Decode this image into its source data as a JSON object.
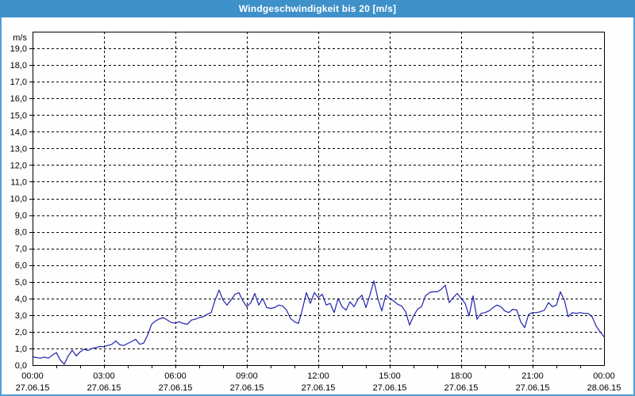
{
  "window": {
    "title": "Windgeschwindigkeit bis 20 [m/s]"
  },
  "colors": {
    "title_bar_bg": "#3E90C8",
    "title_text": "#FFFFFF",
    "frame_border": "#4F9FD4",
    "background": "#FDFEFD",
    "plot_border": "#000000",
    "grid": "#000000",
    "axis_text": "#000000",
    "line": "#2222AE"
  },
  "y_axis": {
    "unit": "m/s",
    "tick_labels": [
      "0,0",
      "1,0",
      "2,0",
      "3,0",
      "4,0",
      "5,0",
      "6,0",
      "7,0",
      "8,0",
      "9,0",
      "10,0",
      "11,0",
      "12,0",
      "13,0",
      "14,0",
      "15,0",
      "16,0",
      "17,0",
      "18,0",
      "19,0"
    ]
  },
  "x_axis": {
    "ticks": [
      {
        "time": "00:00",
        "date": "27.06.15"
      },
      {
        "time": "03:00",
        "date": "27.06.15"
      },
      {
        "time": "06:00",
        "date": "27.06.15"
      },
      {
        "time": "09:00",
        "date": "27.06.15"
      },
      {
        "time": "12:00",
        "date": "27.06.15"
      },
      {
        "time": "15:00",
        "date": "27.06.15"
      },
      {
        "time": "18:00",
        "date": "27.06.15"
      },
      {
        "time": "21:00",
        "date": "27.06.15"
      },
      {
        "time": "00:00",
        "date": "28.06.15"
      }
    ]
  },
  "chart_data": {
    "type": "line",
    "title": "Windgeschwindigkeit bis 20 [m/s]",
    "xlabel": "",
    "ylabel": "m/s",
    "ylim": [
      0,
      20
    ],
    "xlim_hours": [
      0,
      24
    ],
    "grid": "horizontal dashed every 1 m/s, vertical dashed every 3 h",
    "legend": "none",
    "x_start_hour": 0,
    "x_step_minutes": 10,
    "values": [
      0.5,
      0.45,
      0.42,
      0.48,
      0.42,
      0.6,
      0.75,
      0.3,
      0.05,
      0.55,
      0.9,
      0.55,
      0.8,
      0.95,
      0.88,
      1.0,
      1.05,
      1.12,
      1.1,
      1.18,
      1.25,
      1.45,
      1.22,
      1.18,
      1.3,
      1.42,
      1.55,
      1.25,
      1.32,
      1.8,
      2.45,
      2.65,
      2.78,
      2.85,
      2.7,
      2.55,
      2.52,
      2.6,
      2.5,
      2.45,
      2.7,
      2.75,
      2.85,
      2.9,
      3.05,
      3.15,
      3.9,
      4.5,
      3.9,
      3.6,
      3.9,
      4.25,
      4.35,
      3.85,
      3.5,
      3.75,
      4.3,
      3.6,
      4.0,
      3.45,
      3.4,
      3.45,
      3.6,
      3.55,
      3.3,
      2.8,
      2.6,
      2.5,
      3.35,
      4.35,
      3.7,
      4.35,
      4.05,
      4.25,
      3.6,
      3.7,
      3.15,
      4.0,
      3.5,
      3.3,
      3.8,
      3.5,
      3.95,
      4.2,
      3.45,
      4.2,
      5.05,
      4.0,
      3.25,
      4.2,
      4.0,
      3.85,
      3.65,
      3.55,
      3.2,
      2.4,
      2.95,
      3.35,
      3.5,
      4.15,
      4.35,
      4.4,
      4.4,
      4.55,
      4.8,
      3.75,
      4.05,
      4.3,
      4.0,
      3.7,
      2.95,
      4.15,
      2.75,
      3.1,
      3.15,
      3.25,
      3.45,
      3.6,
      3.5,
      3.25,
      3.15,
      3.35,
      3.3,
      2.6,
      2.25,
      3.05,
      3.15,
      3.15,
      3.2,
      3.3,
      3.75,
      3.5,
      3.6,
      4.4,
      3.9,
      2.9,
      3.15,
      3.1,
      3.15,
      3.1,
      3.1,
      2.9,
      2.35,
      2.0,
      1.7
    ]
  }
}
